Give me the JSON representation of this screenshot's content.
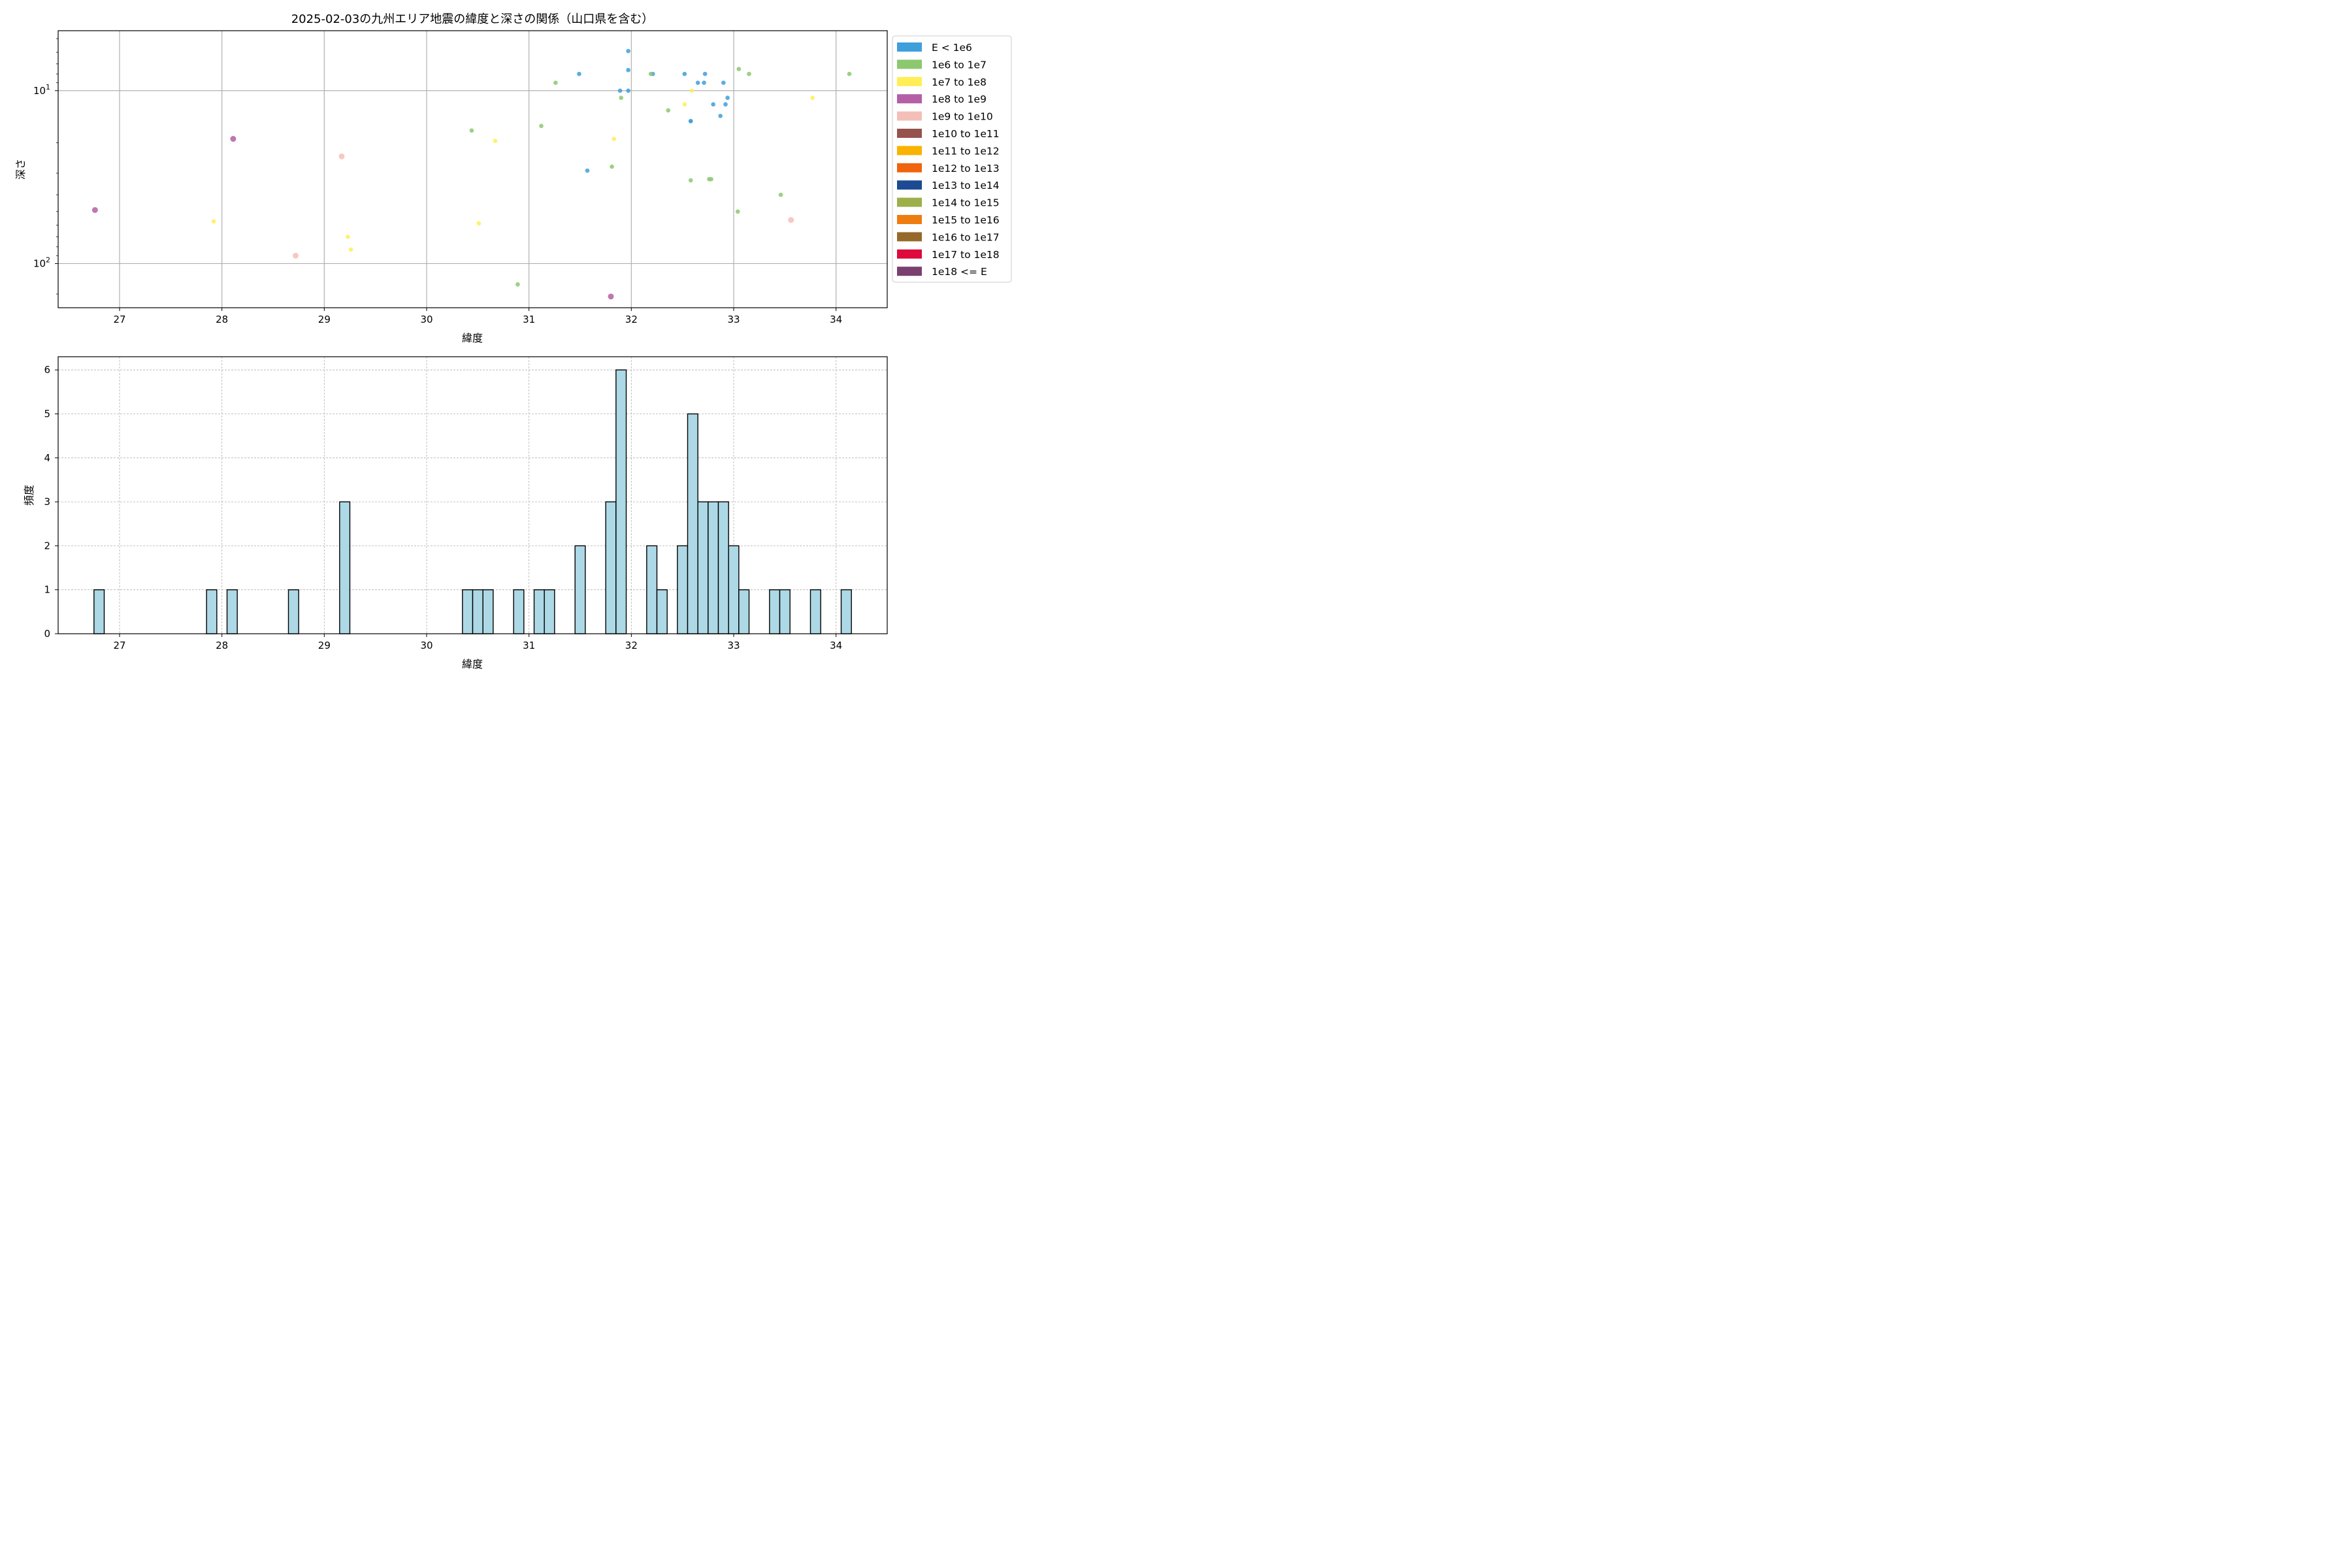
{
  "chart_data": [
    {
      "type": "scatter",
      "title": "2025-02-03の九州エリア地震の緯度と深さの関係（山口県を含む）",
      "xlabel": "緯度",
      "ylabel": "深さ",
      "xlim": [
        26.4,
        34.5
      ],
      "ylim": [
        180,
        4.5
      ],
      "yscale": "log",
      "yaxis_inverted": true,
      "x_ticks": [
        "27",
        "28",
        "29",
        "30",
        "31",
        "32",
        "33",
        "34"
      ],
      "y_ticks": [
        "10^1",
        "10^2"
      ],
      "grid": true,
      "legend_position": "outside-right",
      "legend": [
        {
          "label": "E < 1e6",
          "color": "#3f9fdb"
        },
        {
          "label": "1e6 to 1e7",
          "color": "#8cc86e"
        },
        {
          "label": "1e7 to 1e8",
          "color": "#ffee55"
        },
        {
          "label": "1e8 to 1e9",
          "color": "#b45fa5"
        },
        {
          "label": "1e9 to 1e10",
          "color": "#f4bfb8"
        },
        {
          "label": "1e10 to 1e11",
          "color": "#96524c"
        },
        {
          "label": "1e11 to 1e12",
          "color": "#fab300"
        },
        {
          "label": "1e12 to 1e13",
          "color": "#ef640d"
        },
        {
          "label": "1e13 to 1e14",
          "color": "#1c4a93"
        },
        {
          "label": "1e14 to 1e15",
          "color": "#9caf4a"
        },
        {
          "label": "1e15 to 1e16",
          "color": "#ee7c0e"
        },
        {
          "label": "1e16 to 1e17",
          "color": "#96692a"
        },
        {
          "label": "1e17 to 1e18",
          "color": "#dd0a3b"
        },
        {
          "label": "1e18 <= E",
          "color": "#7a3f6f"
        }
      ],
      "series": [
        {
          "name": "E < 1e6",
          "color": "#3f9fdb",
          "points": [
            [
              31.97,
              5.9
            ],
            [
              31.97,
              7.6
            ],
            [
              31.49,
              8.0
            ],
            [
              32.21,
              8.0
            ],
            [
              32.52,
              8.0
            ],
            [
              32.72,
              8.0
            ],
            [
              32.65,
              9.0
            ],
            [
              32.71,
              9.0
            ],
            [
              32.9,
              9.0
            ],
            [
              31.89,
              10.0
            ],
            [
              31.97,
              10.0
            ],
            [
              32.94,
              11.0
            ],
            [
              32.8,
              12.0
            ],
            [
              32.92,
              12.0
            ],
            [
              32.87,
              14.0
            ],
            [
              32.58,
              15.0
            ],
            [
              32.58,
              15.0
            ],
            [
              31.57,
              29.0
            ]
          ]
        },
        {
          "name": "1e6 to 1e7",
          "color": "#8cc86e",
          "points": [
            [
              33.05,
              7.5
            ],
            [
              32.19,
              8.0
            ],
            [
              33.15,
              8.0
            ],
            [
              34.13,
              8.0
            ],
            [
              31.26,
              9.0
            ],
            [
              31.9,
              11.0
            ],
            [
              32.36,
              13.0
            ],
            [
              30.44,
              17.0
            ],
            [
              31.12,
              16.0
            ],
            [
              31.81,
              27.5
            ],
            [
              32.58,
              33.0
            ],
            [
              32.76,
              32.5
            ],
            [
              32.78,
              32.5
            ],
            [
              33.46,
              40.0
            ],
            [
              33.04,
              50.0
            ],
            [
              30.89,
              132.0
            ]
          ]
        },
        {
          "name": "1e7 to 1e8",
          "color": "#ffee55",
          "points": [
            [
              32.59,
              10.0
            ],
            [
              33.77,
              11.0
            ],
            [
              32.52,
              12.0
            ],
            [
              31.83,
              19.0
            ],
            [
              30.67,
              19.5
            ],
            [
              27.92,
              57.0
            ],
            [
              30.51,
              58.5
            ],
            [
              29.23,
              70.0
            ],
            [
              29.26,
              83.0
            ]
          ]
        },
        {
          "name": "1e8 to 1e9",
          "color": "#b45fa5",
          "points": [
            [
              28.11,
              19.0
            ],
            [
              26.76,
              49.0
            ],
            [
              31.8,
              155.0
            ]
          ]
        },
        {
          "name": "1e9 to 1e10",
          "color": "#f4bfb8",
          "points": [
            [
              29.17,
              24.0
            ],
            [
              33.56,
              56.0
            ],
            [
              28.72,
              90.0
            ]
          ]
        }
      ]
    },
    {
      "type": "bar",
      "subtype": "histogram",
      "title": "",
      "xlabel": "緯度",
      "ylabel": "頻度",
      "xlim": [
        26.4,
        34.5
      ],
      "ylim": [
        0,
        6.3
      ],
      "x_ticks": [
        "27",
        "28",
        "29",
        "30",
        "31",
        "32",
        "33",
        "34"
      ],
      "y_ticks": [
        "0",
        "1",
        "2",
        "3",
        "4",
        "5",
        "6"
      ],
      "grid": true,
      "bar_color": "#add8e6",
      "edge_color": "#000000",
      "bin_width": 0.1,
      "bins": [
        {
          "x0": 26.75,
          "x1": 26.85,
          "count": 1
        },
        {
          "x0": 27.85,
          "x1": 27.95,
          "count": 1
        },
        {
          "x0": 28.05,
          "x1": 28.15,
          "count": 1
        },
        {
          "x0": 28.65,
          "x1": 28.75,
          "count": 1
        },
        {
          "x0": 29.15,
          "x1": 29.25,
          "count": 3
        },
        {
          "x0": 30.35,
          "x1": 30.45,
          "count": 1
        },
        {
          "x0": 30.45,
          "x1": 30.55,
          "count": 1
        },
        {
          "x0": 30.55,
          "x1": 30.65,
          "count": 1
        },
        {
          "x0": 30.85,
          "x1": 30.95,
          "count": 1
        },
        {
          "x0": 31.05,
          "x1": 31.15,
          "count": 1
        },
        {
          "x0": 31.15,
          "x1": 31.25,
          "count": 1
        },
        {
          "x0": 31.45,
          "x1": 31.55,
          "count": 2
        },
        {
          "x0": 31.75,
          "x1": 31.85,
          "count": 3
        },
        {
          "x0": 31.85,
          "x1": 31.95,
          "count": 6
        },
        {
          "x0": 32.15,
          "x1": 32.25,
          "count": 2
        },
        {
          "x0": 32.25,
          "x1": 32.35,
          "count": 1
        },
        {
          "x0": 32.45,
          "x1": 32.55,
          "count": 2
        },
        {
          "x0": 32.55,
          "x1": 32.65,
          "count": 5
        },
        {
          "x0": 32.65,
          "x1": 32.75,
          "count": 3
        },
        {
          "x0": 32.75,
          "x1": 32.85,
          "count": 3
        },
        {
          "x0": 32.85,
          "x1": 32.95,
          "count": 3
        },
        {
          "x0": 32.95,
          "x1": 33.05,
          "count": 2
        },
        {
          "x0": 33.05,
          "x1": 33.15,
          "count": 1
        },
        {
          "x0": 33.35,
          "x1": 33.45,
          "count": 1
        },
        {
          "x0": 33.45,
          "x1": 33.55,
          "count": 1
        },
        {
          "x0": 33.75,
          "x1": 33.85,
          "count": 1
        },
        {
          "x0": 34.05,
          "x1": 34.15,
          "count": 1
        }
      ]
    }
  ]
}
